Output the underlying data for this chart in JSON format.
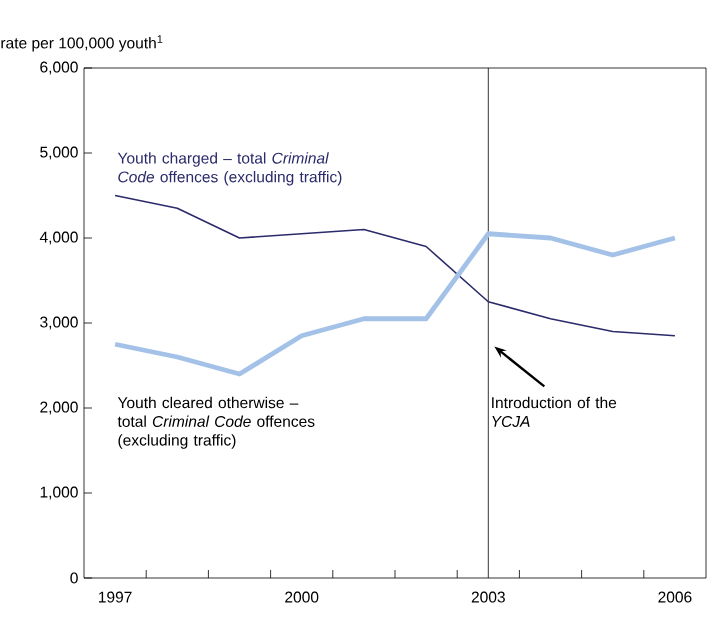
{
  "chart_data": {
    "type": "line",
    "ylabel": "rate per 100,000 youth$^{1}$",
    "x": [
      1997,
      1998,
      1999,
      2000,
      2001,
      2002,
      2003,
      2004,
      2005,
      2006
    ],
    "xlim": [
      1996.5,
      2006.5
    ],
    "xticks": [
      1997,
      {
        "value": 1997.5,
        "label": null
      },
      {
        "value": 1998.5,
        "label": null
      },
      {
        "value": 1999.5,
        "label": null
      },
      2000,
      {
        "value": 2000.5,
        "label": null
      },
      {
        "value": 2001.5,
        "label": null
      },
      {
        "value": 2002.5,
        "label": null
      },
      2003,
      {
        "value": 2003.5,
        "label": null
      },
      {
        "value": 2004.5,
        "label": null
      },
      {
        "value": 2005.5,
        "label": null
      },
      2006
    ],
    "ylim": [
      0,
      6000
    ],
    "yticks": [
      0,
      {
        "value": 1000,
        "label": "1,000"
      },
      {
        "value": 2000,
        "label": "2,000"
      },
      {
        "value": 3000,
        "label": "3,000"
      },
      {
        "value": 4000,
        "label": "4,000"
      },
      {
        "value": 5000,
        "label": "5,000"
      },
      {
        "value": 6000,
        "label": "6,000"
      }
    ],
    "series": [
      {
        "name": "Youth charged – total *Criminal Code* offences (excluding traffic)",
        "color": "#2b2a6b",
        "values": [
          4500,
          4350,
          4000,
          4050,
          4100,
          3900,
          3250,
          3050,
          2900,
          2850
        ]
      },
      {
        "name": "Youth cleared otherwise – total *Criminal Code* offences (excluding traffic)",
        "color": "#a4c2e8",
        "values": [
          2750,
          2600,
          2400,
          2850,
          3050,
          3050,
          4050,
          4000,
          3800,
          4000
        ]
      }
    ],
    "ref_lines": [
      {
        "axis": "x",
        "value": 2003,
        "label": "Introduction of the *YCJA*",
        "color": "#000000"
      }
    ]
  }
}
